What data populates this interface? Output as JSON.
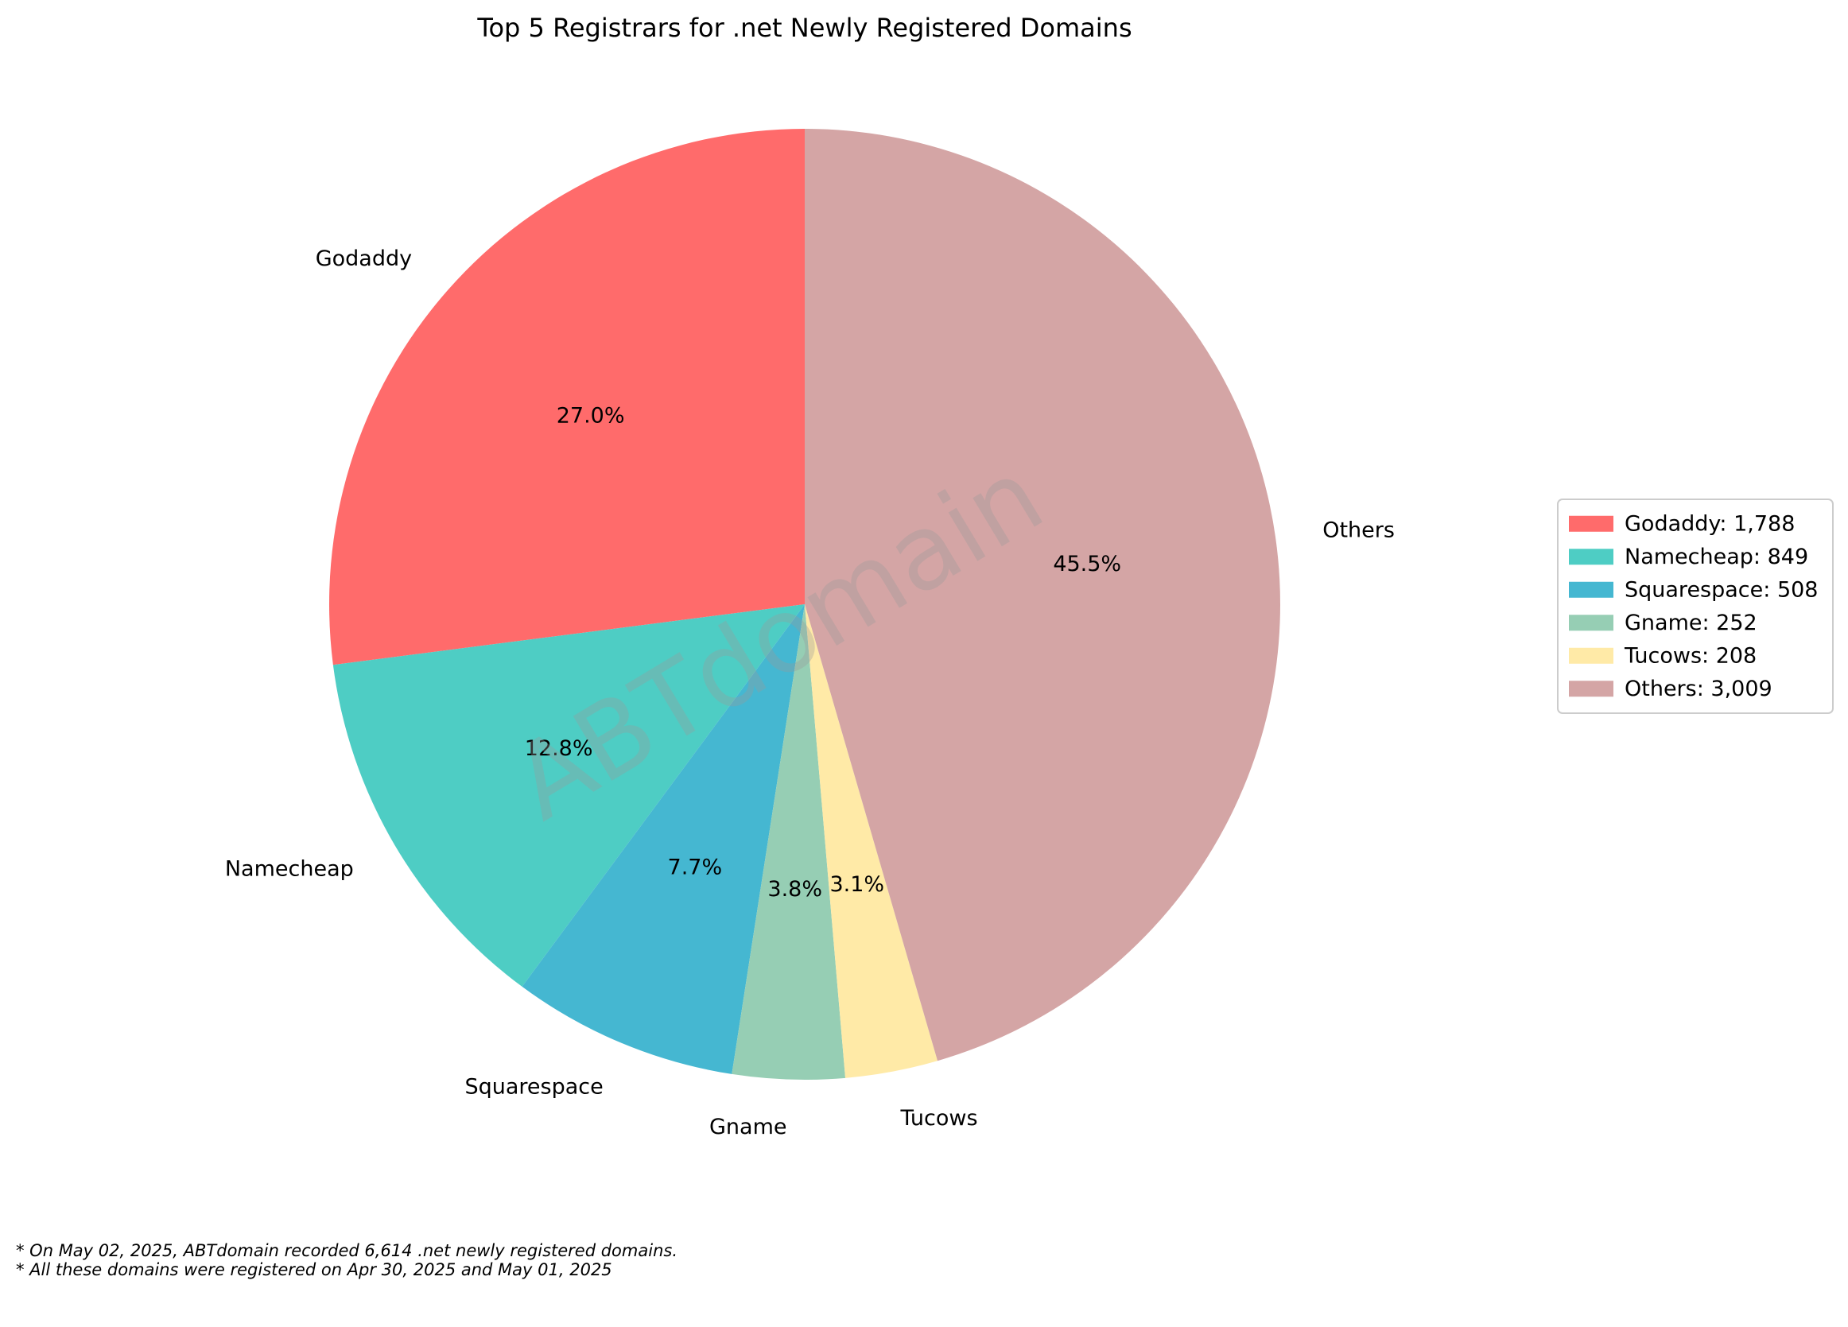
{
  "chart_data": {
    "type": "pie",
    "title": "Top 5 Registrars for .net Newly Registered Domains",
    "slices": [
      {
        "label": "Godaddy",
        "value": 1788,
        "value_text": "1,788",
        "percent": 27.0,
        "color": "#FF6B6B"
      },
      {
        "label": "Namecheap",
        "value": 849,
        "value_text": "849",
        "percent": 12.8,
        "color": "#4ECDC4"
      },
      {
        "label": "Squarespace",
        "value": 508,
        "value_text": "508",
        "percent": 7.7,
        "color": "#45B7D1"
      },
      {
        "label": "Gname",
        "value": 252,
        "value_text": "252",
        "percent": 3.8,
        "color": "#96CEB4"
      },
      {
        "label": "Tucows",
        "value": 208,
        "value_text": "208",
        "percent": 3.1,
        "color": "#FFEAA7"
      },
      {
        "label": "Others",
        "value": 3009,
        "value_text": "3,009",
        "percent": 45.5,
        "color": "#D4A5A5"
      }
    ],
    "start_angle_deg": 90,
    "direction": "counterclockwise",
    "legend_position": "right",
    "watermark": "ABTdomain",
    "footnotes": [
      "* On May 02, 2025, ABTdomain recorded 6,614 .net newly registered domains.",
      "* All these domains were registered on Apr 30, 2025 and May 01, 2025"
    ]
  }
}
